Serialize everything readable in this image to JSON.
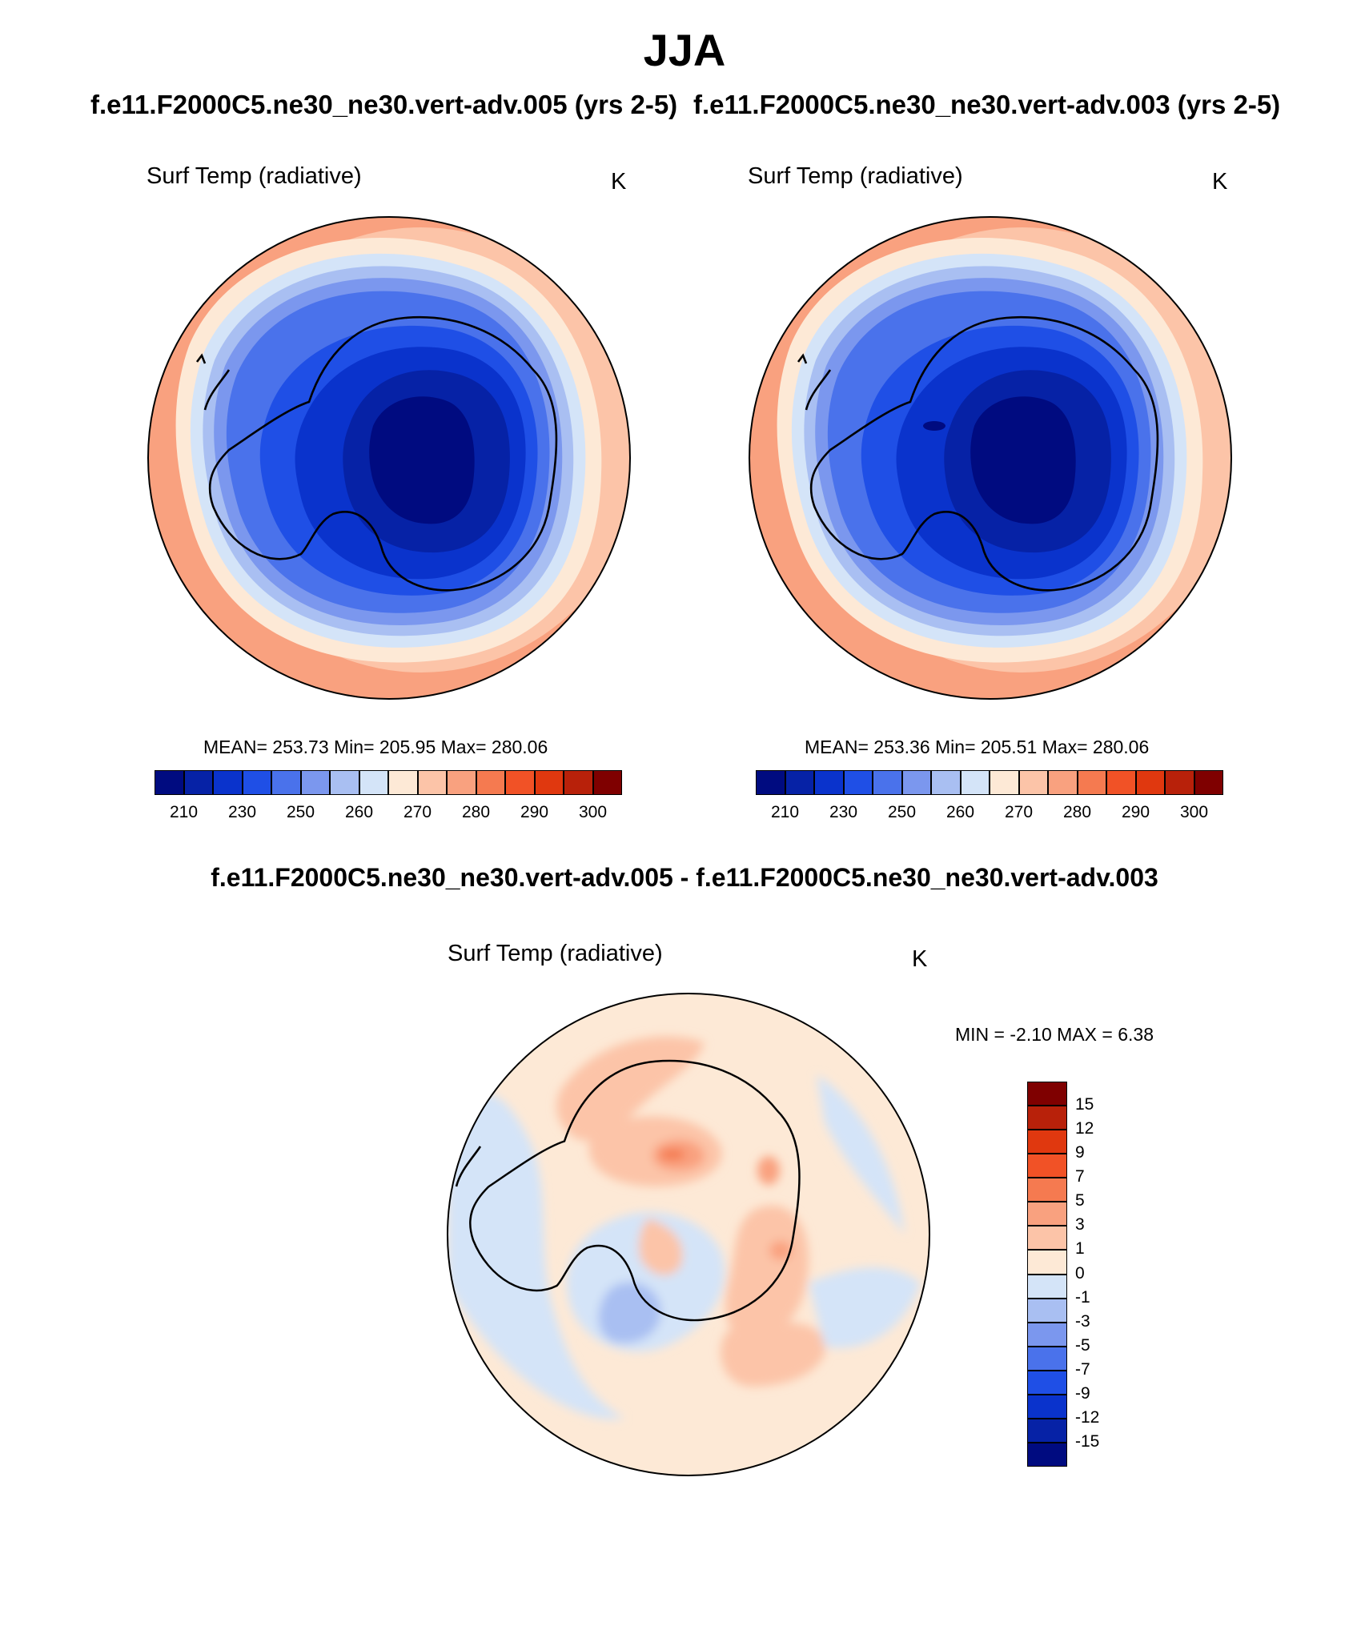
{
  "title": "JJA",
  "panels": [
    {
      "run_title": "f.e11.F2000C5.ne30_ne30.vert-adv.005 (yrs 2-5)",
      "variable": "Surf Temp (radiative)",
      "units": "K",
      "stats": "MEAN= 253.73  Min= 205.95  Max= 280.06"
    },
    {
      "run_title": "f.e11.F2000C5.ne30_ne30.vert-adv.003 (yrs 2-5)",
      "variable": "Surf Temp (radiative)",
      "units": "K",
      "stats": "MEAN= 253.36  Min= 205.51  Max= 280.06"
    }
  ],
  "difference": {
    "title": "f.e11.F2000C5.ne30_ne30.vert-adv.005 - f.e11.F2000C5.ne30_ne30.vert-adv.003",
    "variable": "Surf Temp (radiative)",
    "units": "K",
    "stats": "MIN =  -2.10 MAX =   6.38"
  },
  "colorbar_abs": {
    "tick_labels": [
      "210",
      "230",
      "250",
      "260",
      "270",
      "280",
      "290",
      "300"
    ],
    "colors": [
      "#000b80",
      "#0622a6",
      "#0a33cc",
      "#1f4fe6",
      "#4a72eb",
      "#7b97ee",
      "#a9bff2",
      "#d4e4f8",
      "#fde9d6",
      "#fcc4a8",
      "#f9a17f",
      "#f57a50",
      "#f15226",
      "#e0380f",
      "#b8210a",
      "#7f0000"
    ]
  },
  "colorbar_diff": {
    "tick_labels": [
      "15",
      "12",
      "9",
      "7",
      "5",
      "3",
      "1",
      "0",
      "-1",
      "-3",
      "-5",
      "-7",
      "-9",
      "-12",
      "-15"
    ],
    "colors": [
      "#7f0000",
      "#b8210a",
      "#e0380f",
      "#f15226",
      "#f57a50",
      "#f9a17f",
      "#fcc4a8",
      "#fde9d6",
      "#d4e4f8",
      "#a9bff2",
      "#7b97ee",
      "#4a72eb",
      "#1f4fe6",
      "#0a33cc",
      "#0622a6",
      "#000b80"
    ]
  }
}
